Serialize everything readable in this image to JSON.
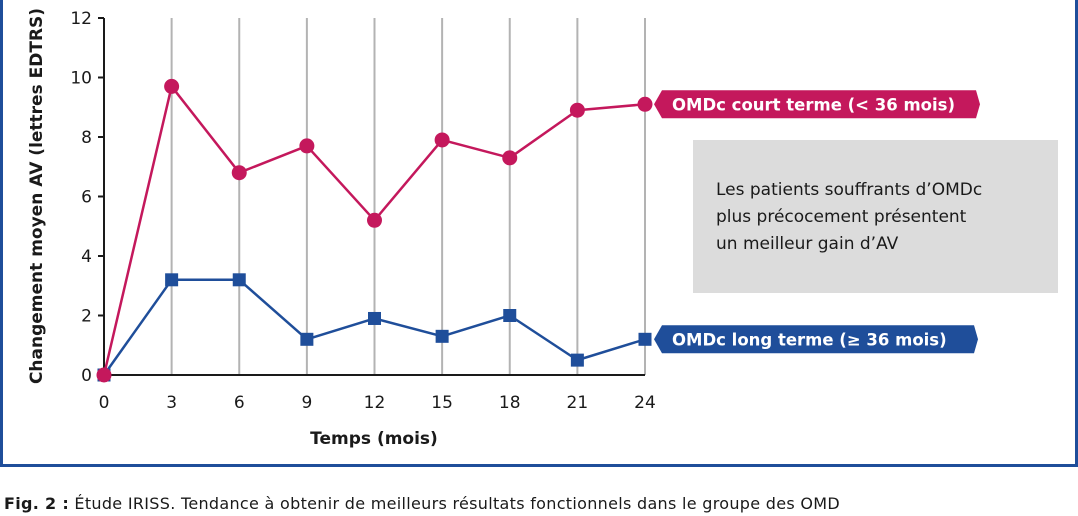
{
  "chart_data": {
    "type": "line",
    "xlabel": "Temps (mois)",
    "ylabel": "Changement moyen AV (lettres EDTRS)",
    "x": [
      0,
      3,
      6,
      9,
      12,
      15,
      18,
      21,
      24
    ],
    "xticks": [
      "0",
      "3",
      "6",
      "9",
      "12",
      "15",
      "18",
      "21",
      "24"
    ],
    "yticks": [
      "0",
      "2",
      "4",
      "6",
      "8",
      "10",
      "12"
    ],
    "ylim": [
      0,
      12
    ],
    "xlim": [
      0,
      24
    ],
    "grid": "vertical",
    "series": [
      {
        "name": "OMDc court terme (< 36 mois)",
        "marker": "circle",
        "color": "#c4185c",
        "values": [
          0,
          9.7,
          6.8,
          7.7,
          5.2,
          7.9,
          7.3,
          8.9,
          9.1
        ]
      },
      {
        "name": "OMDc long terme (≥ 36 mois)",
        "marker": "square",
        "color": "#1f4e9a",
        "values": [
          0,
          3.2,
          3.2,
          1.2,
          1.9,
          1.3,
          2.0,
          0.5,
          1.2
        ]
      }
    ],
    "annotation": [
      "Les patients souffrants d’OMDc",
      "plus précocement présentent",
      "un meilleur gain d’AV"
    ]
  },
  "caption": {
    "lead": "Fig. 2 :",
    "text": " Étude IRISS. Tendance à obtenir de meilleurs résultats fonctionnels dans le groupe des OMD"
  },
  "colors": {
    "frame": "#1f4e9a",
    "grid": "#b3b3b3",
    "note_bg": "#dcdcdc"
  }
}
